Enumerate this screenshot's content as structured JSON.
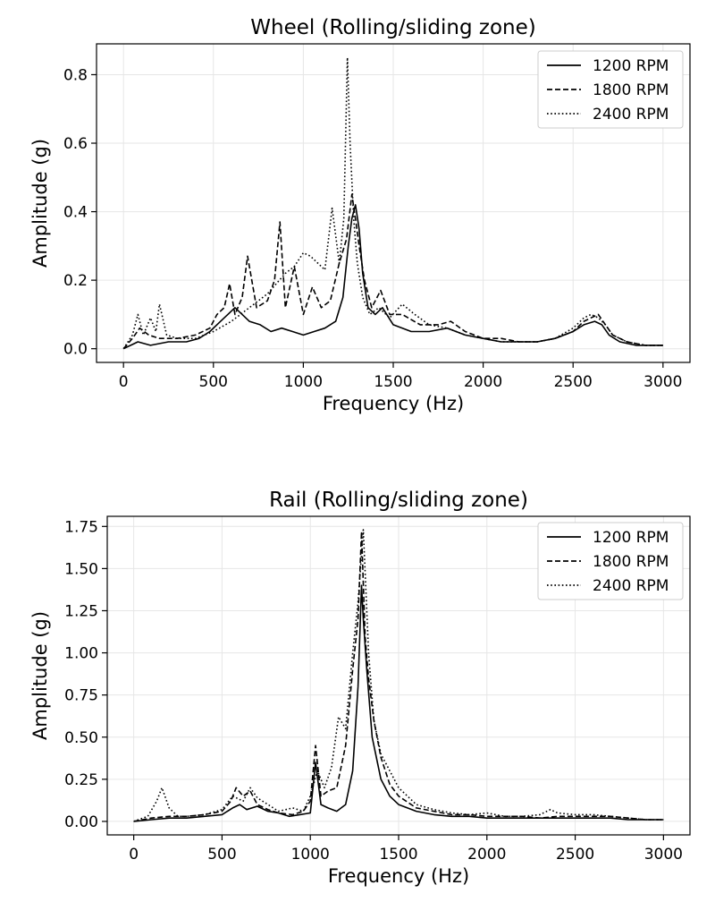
{
  "chart_data": [
    {
      "type": "line",
      "title": "Wheel (Rolling/sliding zone)",
      "xlabel": "Frequency (Hz)",
      "ylabel": "Amplitude (g)",
      "xlim": [
        -150,
        3150
      ],
      "ylim": [
        -0.04,
        0.89
      ],
      "xticks": [
        0,
        500,
        1000,
        1500,
        2000,
        2500,
        3000
      ],
      "xtick_labels": [
        "0",
        "500",
        "1000",
        "1500",
        "2000",
        "2500",
        "3000"
      ],
      "yticks": [
        0.0,
        0.2,
        0.4,
        0.6,
        0.8
      ],
      "ytick_labels": [
        "0.0",
        "0.2",
        "0.4",
        "0.6",
        "0.8"
      ],
      "grid": true,
      "legend_position": "top-right",
      "series": [
        {
          "name": "1200 RPM",
          "style": "solid",
          "color": "#000000",
          "x": [
            0,
            40,
            80,
            150,
            250,
            350,
            420,
            480,
            540,
            580,
            620,
            660,
            700,
            760,
            820,
            880,
            940,
            1000,
            1060,
            1120,
            1180,
            1220,
            1250,
            1270,
            1290,
            1310,
            1330,
            1360,
            1400,
            1440,
            1500,
            1600,
            1700,
            1800,
            1900,
            2000,
            2100,
            2200,
            2300,
            2400,
            2500,
            2560,
            2620,
            2660,
            2700,
            2760,
            2850,
            2950,
            3000
          ],
          "y": [
            0.0,
            0.01,
            0.02,
            0.01,
            0.02,
            0.02,
            0.03,
            0.05,
            0.08,
            0.1,
            0.12,
            0.1,
            0.08,
            0.07,
            0.05,
            0.06,
            0.05,
            0.04,
            0.05,
            0.06,
            0.08,
            0.15,
            0.3,
            0.38,
            0.42,
            0.35,
            0.22,
            0.12,
            0.1,
            0.12,
            0.07,
            0.05,
            0.05,
            0.06,
            0.04,
            0.03,
            0.02,
            0.02,
            0.02,
            0.03,
            0.05,
            0.07,
            0.08,
            0.07,
            0.04,
            0.02,
            0.01,
            0.01,
            0.01
          ]
        },
        {
          "name": "1800 RPM",
          "style": "dashed",
          "color": "#000000",
          "x": [
            0,
            50,
            90,
            140,
            200,
            300,
            400,
            480,
            520,
            560,
            590,
            620,
            660,
            690,
            740,
            800,
            840,
            870,
            900,
            950,
            1000,
            1050,
            1100,
            1150,
            1200,
            1240,
            1270,
            1290,
            1310,
            1340,
            1380,
            1430,
            1480,
            1550,
            1650,
            1750,
            1820,
            1900,
            2000,
            2100,
            2200,
            2300,
            2400,
            2500,
            2560,
            2600,
            2640,
            2680,
            2720,
            2800,
            2900,
            3000
          ],
          "y": [
            0.0,
            0.03,
            0.06,
            0.04,
            0.03,
            0.03,
            0.04,
            0.06,
            0.1,
            0.12,
            0.19,
            0.1,
            0.15,
            0.27,
            0.12,
            0.14,
            0.2,
            0.37,
            0.12,
            0.24,
            0.1,
            0.18,
            0.12,
            0.14,
            0.25,
            0.32,
            0.45,
            0.38,
            0.3,
            0.2,
            0.12,
            0.17,
            0.1,
            0.1,
            0.07,
            0.07,
            0.08,
            0.05,
            0.03,
            0.03,
            0.02,
            0.02,
            0.03,
            0.05,
            0.08,
            0.09,
            0.1,
            0.07,
            0.04,
            0.02,
            0.01,
            0.01
          ]
        },
        {
          "name": "2400 RPM",
          "style": "dotted",
          "color": "#000000",
          "x": [
            0,
            50,
            80,
            110,
            150,
            180,
            200,
            240,
            300,
            400,
            500,
            600,
            700,
            800,
            900,
            950,
            1000,
            1040,
            1080,
            1120,
            1160,
            1200,
            1225,
            1245,
            1260,
            1280,
            1300,
            1330,
            1370,
            1420,
            1480,
            1550,
            1620,
            1700,
            1800,
            1900,
            2000,
            2100,
            2200,
            2300,
            2400,
            2500,
            2560,
            2600,
            2640,
            2680,
            2720,
            2800,
            2900,
            3000
          ],
          "y": [
            0.0,
            0.04,
            0.1,
            0.04,
            0.09,
            0.05,
            0.13,
            0.04,
            0.03,
            0.03,
            0.05,
            0.08,
            0.12,
            0.16,
            0.22,
            0.24,
            0.28,
            0.27,
            0.25,
            0.23,
            0.41,
            0.25,
            0.38,
            0.85,
            0.6,
            0.38,
            0.25,
            0.15,
            0.1,
            0.12,
            0.09,
            0.13,
            0.1,
            0.07,
            0.06,
            0.04,
            0.03,
            0.02,
            0.02,
            0.02,
            0.03,
            0.06,
            0.09,
            0.1,
            0.09,
            0.07,
            0.04,
            0.02,
            0.01,
            0.01
          ]
        }
      ]
    },
    {
      "type": "line",
      "title": "Rail (Rolling/sliding zone)",
      "xlabel": "Frequency (Hz)",
      "ylabel": "Amplitude (g)",
      "xlim": [
        -150,
        3150
      ],
      "ylim": [
        -0.08,
        1.81
      ],
      "xticks": [
        0,
        500,
        1000,
        1500,
        2000,
        2500,
        3000
      ],
      "xtick_labels": [
        "0",
        "500",
        "1000",
        "1500",
        "2000",
        "2500",
        "3000"
      ],
      "yticks": [
        0.0,
        0.25,
        0.5,
        0.75,
        1.0,
        1.25,
        1.5,
        1.75
      ],
      "ytick_labels": [
        "0.00",
        "0.25",
        "0.50",
        "0.75",
        "1.00",
        "1.25",
        "1.50",
        "1.75"
      ],
      "grid": true,
      "legend_position": "top-right",
      "series": [
        {
          "name": "1200 RPM",
          "style": "solid",
          "color": "#000000",
          "x": [
            0,
            100,
            200,
            300,
            400,
            500,
            560,
            600,
            640,
            700,
            760,
            820,
            880,
            940,
            1000,
            1030,
            1060,
            1100,
            1150,
            1200,
            1240,
            1270,
            1290,
            1300,
            1320,
            1350,
            1400,
            1450,
            1500,
            1600,
            1700,
            1800,
            1900,
            2000,
            2100,
            2200,
            2300,
            2400,
            2500,
            2600,
            2700,
            2800,
            2900,
            3000
          ],
          "y": [
            0.0,
            0.01,
            0.02,
            0.02,
            0.03,
            0.04,
            0.08,
            0.1,
            0.07,
            0.09,
            0.06,
            0.05,
            0.03,
            0.04,
            0.05,
            0.35,
            0.1,
            0.08,
            0.06,
            0.1,
            0.3,
            0.8,
            1.4,
            1.2,
            0.9,
            0.5,
            0.25,
            0.15,
            0.1,
            0.06,
            0.04,
            0.03,
            0.03,
            0.02,
            0.02,
            0.02,
            0.02,
            0.02,
            0.02,
            0.02,
            0.02,
            0.01,
            0.01,
            0.01
          ]
        },
        {
          "name": "1800 RPM",
          "style": "dashed",
          "color": "#000000",
          "x": [
            0,
            100,
            200,
            300,
            400,
            500,
            550,
            580,
            620,
            660,
            700,
            760,
            820,
            900,
            960,
            1000,
            1030,
            1060,
            1100,
            1150,
            1200,
            1240,
            1270,
            1290,
            1310,
            1330,
            1360,
            1400,
            1450,
            1500,
            1600,
            1700,
            1800,
            1900,
            2000,
            2100,
            2200,
            2300,
            2400,
            2500,
            2600,
            2700,
            2800,
            2900,
            3000
          ],
          "y": [
            0.0,
            0.02,
            0.03,
            0.03,
            0.04,
            0.06,
            0.12,
            0.2,
            0.15,
            0.18,
            0.1,
            0.07,
            0.05,
            0.04,
            0.06,
            0.12,
            0.45,
            0.15,
            0.18,
            0.2,
            0.45,
            0.9,
            1.2,
            1.72,
            1.1,
            0.85,
            0.6,
            0.38,
            0.22,
            0.15,
            0.08,
            0.06,
            0.04,
            0.04,
            0.03,
            0.03,
            0.03,
            0.02,
            0.03,
            0.03,
            0.03,
            0.03,
            0.02,
            0.01,
            0.01
          ]
        },
        {
          "name": "2400 RPM",
          "style": "dotted",
          "color": "#000000",
          "x": [
            0,
            80,
            130,
            160,
            200,
            250,
            300,
            400,
            500,
            560,
            620,
            660,
            700,
            760,
            820,
            900,
            960,
            1000,
            1040,
            1080,
            1120,
            1160,
            1200,
            1240,
            1270,
            1300,
            1330,
            1360,
            1400,
            1450,
            1500,
            1600,
            1700,
            1800,
            1900,
            2000,
            2100,
            2200,
            2300,
            2360,
            2400,
            2500,
            2600,
            2700,
            2800,
            2900,
            3000
          ],
          "y": [
            0.0,
            0.03,
            0.12,
            0.2,
            0.08,
            0.03,
            0.03,
            0.04,
            0.07,
            0.15,
            0.12,
            0.2,
            0.14,
            0.1,
            0.06,
            0.08,
            0.06,
            0.15,
            0.3,
            0.2,
            0.32,
            0.62,
            0.55,
            1.0,
            1.3,
            1.73,
            1.0,
            0.6,
            0.4,
            0.3,
            0.2,
            0.1,
            0.07,
            0.05,
            0.04,
            0.05,
            0.03,
            0.03,
            0.04,
            0.07,
            0.05,
            0.04,
            0.04,
            0.03,
            0.02,
            0.01,
            0.01
          ]
        }
      ]
    }
  ]
}
